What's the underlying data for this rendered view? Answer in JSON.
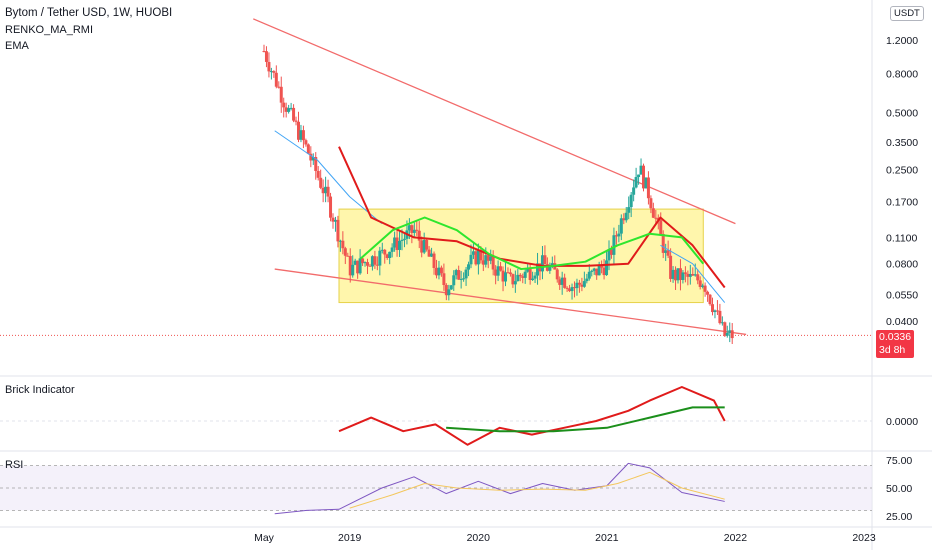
{
  "legend": {
    "title": "Bytom / Tether USD, 1W, HUOBI",
    "ind1": "RENKO_MA_RMI",
    "ind2": "EMA"
  },
  "currency_badge": "USDT",
  "last_price": {
    "value": "0.0336",
    "countdown": "3d 8h"
  },
  "panes": {
    "brick_title": "Brick Indicator",
    "rsi_title": "RSI"
  },
  "colors": {
    "up": "#26a69a",
    "down": "#ef5350",
    "box_fill": "#fff59d",
    "trendline": "#f26b6b",
    "ema_red": "#e01b1b",
    "ema_green": "#2ee62e",
    "ema_blue": "#42a5f5",
    "brick_red": "#e01b1b",
    "brick_green": "#1b8f1b",
    "rsi": "#7e57c2",
    "rsi_ma": "#f3c75c"
  },
  "chart_data": [
    {
      "type": "line",
      "title": "Bytom / Tether USD, 1W, HUOBI",
      "y_scale": "log",
      "y_ticks": [
        "1.2000",
        "0.8000",
        "0.5000",
        "0.3500",
        "0.2500",
        "0.1700",
        "0.1100",
        "0.0800",
        "0.0550",
        "0.0400"
      ],
      "x_ticks": [
        "May",
        "2019",
        "2020",
        "2021",
        "2022",
        "2023"
      ],
      "series": [
        {
          "name": "",
          "x": [
            "2018-05",
            "2018-07",
            "2018-09",
            "2018-11",
            "2019-01",
            "2019-04",
            "2019-07",
            "2019-10",
            "2020-01",
            "2020-04",
            "2020-07",
            "2020-10",
            "2021-01",
            "2021-04",
            "2021-05",
            "2021-07",
            "2021-10",
            "2021-12"
          ],
          "values": [
            1.05,
            0.55,
            0.32,
            0.17,
            0.075,
            0.09,
            0.12,
            0.06,
            0.09,
            0.065,
            0.08,
            0.06,
            0.08,
            0.26,
            0.18,
            0.07,
            0.065,
            0.0336
          ]
        },
        {
          "name": "",
          "x": [
            "2018-12",
            "2019-03",
            "2019-07",
            "2019-11",
            "2020-03",
            "2020-07",
            "2020-11",
            "2021-03",
            "2021-06",
            "2021-09",
            "2021-12"
          ],
          "values": [
            0.33,
            0.14,
            0.11,
            0.105,
            0.085,
            0.078,
            0.078,
            0.08,
            0.14,
            0.1,
            0.06
          ]
        }
      ],
      "annotations": {
        "box_range": [
          0.05,
          0.155
        ],
        "falling_wedge_upper": [
          1.55,
          0.13
        ],
        "falling_wedge_lower": [
          0.075,
          0.034
        ]
      }
    },
    {
      "type": "line",
      "title": "Brick Indicator",
      "y_ticks": [
        "0.0000"
      ]
    },
    {
      "type": "line",
      "title": "RSI",
      "y_ticks": [
        "75.00",
        "50.00",
        "25.00"
      ],
      "ylim": [
        20,
        80
      ],
      "bands": [
        30,
        70
      ]
    }
  ]
}
